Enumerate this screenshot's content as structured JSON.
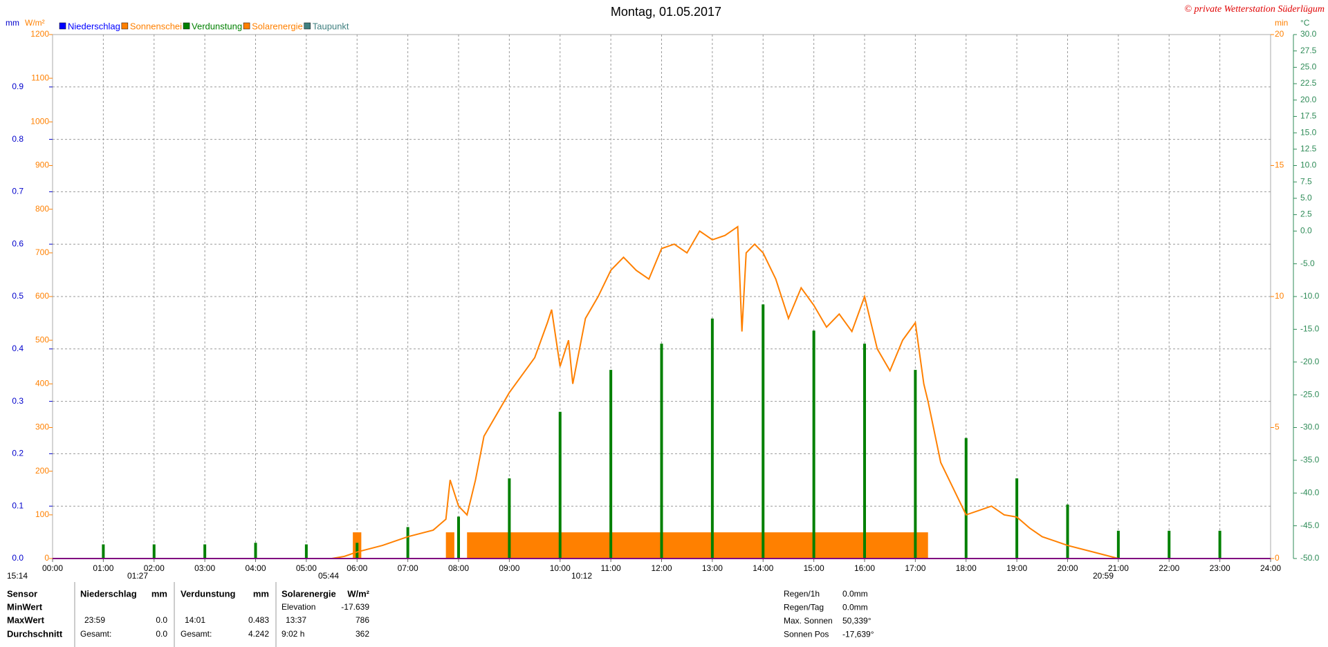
{
  "chart_data": {
    "type": "line",
    "title": "Montag, 01.05.2017",
    "copyright": "© private Wetterstation Süderlügum",
    "grid": true,
    "xlim": [
      "00:00",
      "24:00"
    ],
    "xticks": [
      "00:00",
      "01:00",
      "02:00",
      "03:00",
      "04:00",
      "05:00",
      "06:00",
      "07:00",
      "08:00",
      "09:00",
      "10:00",
      "11:00",
      "12:00",
      "13:00",
      "14:00",
      "15:00",
      "16:00",
      "17:00",
      "18:00",
      "19:00",
      "20:00",
      "21:00",
      "22:00",
      "23:00",
      "24:00"
    ],
    "axes": {
      "mm": {
        "label": "mm",
        "color": "#0000cc",
        "lim": [
          0,
          1
        ],
        "ticks": [
          {
            "value": 0,
            "label": "0.0"
          },
          {
            "value": 0.1,
            "label": "0.1"
          },
          {
            "value": 0.2,
            "label": "0.2"
          },
          {
            "value": 0.3,
            "label": "0.3"
          },
          {
            "value": 0.4,
            "label": "0.4"
          },
          {
            "value": 0.5,
            "label": "0.5"
          },
          {
            "value": 0.6,
            "label": "0.6"
          },
          {
            "value": 0.7,
            "label": "0.7"
          },
          {
            "value": 0.8,
            "label": "0.8"
          },
          {
            "value": 0.9,
            "label": "0.9"
          }
        ]
      },
      "wm2": {
        "label": "W/m²",
        "color": "#ff8000",
        "lim": [
          0,
          1200
        ],
        "ticks": [
          0,
          100,
          200,
          300,
          400,
          500,
          600,
          700,
          800,
          900,
          1000,
          1100,
          1200
        ]
      },
      "min": {
        "label": "min",
        "color": "#ff8000",
        "lim": [
          0,
          20
        ],
        "ticks": [
          0,
          5,
          10,
          15,
          20
        ]
      },
      "degc": {
        "label": "°C",
        "color": "#2e8b57",
        "lim": [
          -50,
          30
        ],
        "ticks": [
          {
            "value": 30,
            "label": "30.0"
          },
          {
            "value": 27.5,
            "label": "27.5"
          },
          {
            "value": 25,
            "label": "25.0"
          },
          {
            "value": 22.5,
            "label": "22.5"
          },
          {
            "value": 20,
            "label": "20.0"
          },
          {
            "value": 17.5,
            "label": "17.5"
          },
          {
            "value": 15,
            "label": "15.0"
          },
          {
            "value": 12.5,
            "label": "12.5"
          },
          {
            "value": 10,
            "label": "10.0"
          },
          {
            "value": 7.5,
            "label": "7.5"
          },
          {
            "value": 5,
            "label": "5.0"
          },
          {
            "value": 2.5,
            "label": "2.5"
          },
          {
            "value": 0,
            "label": "0.0"
          },
          {
            "value": -5,
            "label": "-5.0"
          },
          {
            "value": -10,
            "label": "-10.0"
          },
          {
            "value": -15,
            "label": "-15.0"
          },
          {
            "value": -20,
            "label": "-20.0"
          },
          {
            "value": -25,
            "label": "-25.0"
          },
          {
            "value": -30,
            "label": "-30.0"
          },
          {
            "value": -35,
            "label": "-35.0"
          },
          {
            "value": -40,
            "label": "-40.0"
          },
          {
            "value": -45,
            "label": "-45.0"
          },
          {
            "value": -50,
            "label": "-50.0"
          }
        ]
      }
    },
    "series": [
      {
        "name": "Niederschlag",
        "color": "#0000ff"
      },
      {
        "name": "Sonnenschei",
        "color": "#ff8000",
        "axis": "min",
        "x": [
          "05:55",
          "07:45",
          "08:10"
        ],
        "x_end": [
          "06:05",
          "07:55",
          "17:15"
        ],
        "values": [
          1,
          1,
          1
        ]
      },
      {
        "name": "Verdunstung",
        "color": "#008000",
        "axis": "mm",
        "x": [
          "01:00",
          "02:00",
          "03:00",
          "04:00",
          "05:00",
          "06:00",
          "07:00",
          "08:00",
          "09:00",
          "10:00",
          "11:00",
          "12:00",
          "13:00",
          "14:00",
          "15:00",
          "16:00",
          "17:00",
          "18:00",
          "19:00",
          "20:00",
          "21:00",
          "22:00",
          "23:00"
        ],
        "values": [
          0.027,
          0.027,
          0.027,
          0.03,
          0.027,
          0.03,
          0.06,
          0.08,
          0.153,
          0.28,
          0.36,
          0.41,
          0.458,
          0.485,
          0.435,
          0.41,
          0.36,
          0.23,
          0.153,
          0.103,
          0.053,
          0.053,
          0.053
        ]
      },
      {
        "name": "Solarenergie",
        "color": "#ff8000",
        "axis": "wm2",
        "x": [
          "05:30",
          "05:45",
          "06:00",
          "06:30",
          "07:00",
          "07:30",
          "07:45",
          "07:50",
          "08:00",
          "08:10",
          "08:20",
          "08:30",
          "08:45",
          "09:00",
          "09:15",
          "09:30",
          "09:45",
          "09:50",
          "10:00",
          "10:10",
          "10:15",
          "10:30",
          "10:45",
          "11:00",
          "11:15",
          "11:30",
          "11:45",
          "12:00",
          "12:15",
          "12:30",
          "12:45",
          "13:00",
          "13:15",
          "13:30",
          "13:35",
          "13:40",
          "13:50",
          "14:00",
          "14:15",
          "14:30",
          "14:45",
          "15:00",
          "15:15",
          "15:30",
          "15:45",
          "16:00",
          "16:15",
          "16:30",
          "16:45",
          "17:00",
          "17:10",
          "17:15",
          "17:30",
          "17:45",
          "18:00",
          "18:15",
          "18:30",
          "18:45",
          "19:00",
          "19:15",
          "19:30",
          "19:45",
          "20:00",
          "20:30",
          "21:00"
        ],
        "values": [
          0,
          5,
          15,
          30,
          50,
          65,
          90,
          180,
          120,
          100,
          180,
          280,
          330,
          380,
          420,
          460,
          540,
          570,
          440,
          500,
          400,
          550,
          600,
          660,
          690,
          660,
          640,
          710,
          720,
          700,
          750,
          730,
          740,
          760,
          520,
          700,
          720,
          700,
          640,
          550,
          620,
          580,
          530,
          560,
          520,
          600,
          480,
          430,
          500,
          540,
          400,
          360,
          220,
          160,
          100,
          110,
          120,
          100,
          95,
          70,
          50,
          40,
          30,
          15,
          0
        ]
      },
      {
        "name": "Taupunkt",
        "color": "#408080"
      }
    ]
  },
  "time_markers": [
    "15:14",
    "01:27",
    "05:44",
    "10:12",
    "20:59"
  ],
  "table": {
    "header": [
      "Sensor",
      "Niederschlag",
      "mm",
      "Verdunstung",
      "mm",
      "Solarenergie",
      "W/m²"
    ],
    "min_row": [
      "MinWert",
      "Elevation",
      "-17.639"
    ],
    "max_row": [
      "MaxWert",
      "23:59",
      "0.0",
      "14:01",
      "0.483",
      "13:37",
      "786"
    ],
    "avg_row": [
      "Durchschnitt",
      "Gesamt:",
      "0.0",
      "Gesamt:",
      "4.242",
      "9:02 h",
      "362"
    ]
  },
  "info": [
    [
      "Regen/1h",
      "0.0mm"
    ],
    [
      "Regen/Tag",
      "0.0mm"
    ],
    [
      "Max. Sonnen",
      "50,339°"
    ],
    [
      "Sonnen Pos",
      "-17,639°"
    ]
  ]
}
